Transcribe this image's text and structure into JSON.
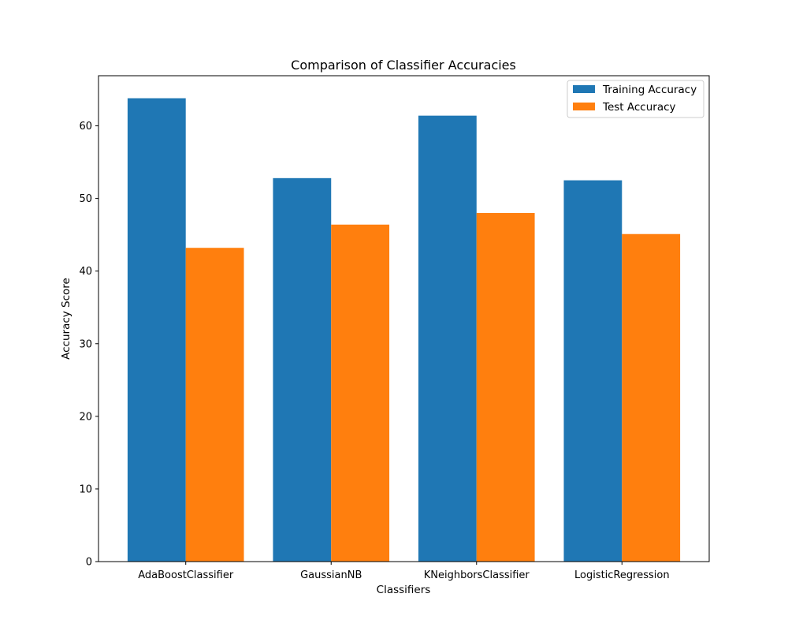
{
  "chart_data": {
    "type": "bar",
    "title": "Comparison of Classifier Accuracies",
    "xlabel": "Classifiers",
    "ylabel": "Accuracy Score",
    "categories": [
      "AdaBoostClassifier",
      "GaussianNB",
      "KNeighborsClassifier",
      "LogisticRegression"
    ],
    "series": [
      {
        "name": "Training Accuracy",
        "color": "#1f77b4",
        "values": [
          63.8,
          52.8,
          61.4,
          52.5
        ]
      },
      {
        "name": "Test Accuracy",
        "color": "#ff7f0e",
        "values": [
          43.2,
          46.4,
          48.0,
          45.1
        ]
      }
    ],
    "ylim": [
      0,
      66.9
    ],
    "yticks": [
      0,
      10,
      20,
      30,
      40,
      50,
      60
    ],
    "grid": false,
    "legend_position": "top-right"
  }
}
